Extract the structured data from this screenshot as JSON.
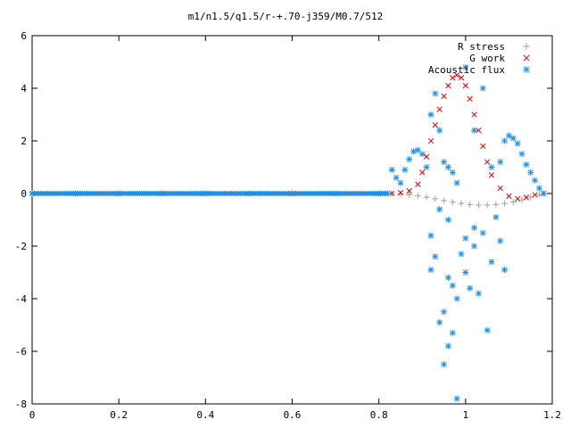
{
  "chart_data": {
    "type": "scatter",
    "title": "m1/n1.5/q1.5/r-+.70-j359/M0.7/512",
    "xlabel": "",
    "ylabel": "",
    "xlim": [
      0,
      1.2
    ],
    "ylim": [
      -8,
      6
    ],
    "x_ticks": [
      "0",
      "0.2",
      "0.4",
      "0.6",
      "0.8",
      "1",
      "1.2"
    ],
    "y_ticks": [
      "6",
      "4",
      "2",
      "0",
      "-2",
      "-4",
      "-6",
      "-8"
    ],
    "grid": false,
    "legend_position": "top-right",
    "series": [
      {
        "name": "R stress",
        "marker": "plus",
        "color": "#a0a0a0",
        "points": [
          [
            0.83,
            0.0
          ],
          [
            0.85,
            -0.02
          ],
          [
            0.87,
            -0.05
          ],
          [
            0.89,
            -0.09
          ],
          [
            0.91,
            -0.14
          ],
          [
            0.93,
            -0.2
          ],
          [
            0.95,
            -0.27
          ],
          [
            0.97,
            -0.33
          ],
          [
            0.99,
            -0.38
          ],
          [
            1.01,
            -0.42
          ],
          [
            1.03,
            -0.44
          ],
          [
            1.05,
            -0.44
          ],
          [
            1.07,
            -0.42
          ],
          [
            1.09,
            -0.38
          ],
          [
            1.11,
            -0.32
          ],
          [
            1.13,
            -0.24
          ],
          [
            1.15,
            -0.14
          ],
          [
            1.17,
            -0.05
          ],
          [
            1.18,
            0.0
          ]
        ]
      },
      {
        "name": "G work",
        "marker": "cross",
        "color": "#e00000",
        "points": [
          [
            0.83,
            0.0
          ],
          [
            0.85,
            0.03
          ],
          [
            0.87,
            0.1
          ],
          [
            0.89,
            0.35
          ],
          [
            0.9,
            0.8
          ],
          [
            0.91,
            1.4
          ],
          [
            0.92,
            2.0
          ],
          [
            0.93,
            2.6
          ],
          [
            0.94,
            3.2
          ],
          [
            0.95,
            3.7
          ],
          [
            0.96,
            4.1
          ],
          [
            0.97,
            4.4
          ],
          [
            0.98,
            4.5
          ],
          [
            0.99,
            4.4
          ],
          [
            1.0,
            4.1
          ],
          [
            1.01,
            3.6
          ],
          [
            1.02,
            3.0
          ],
          [
            1.03,
            2.4
          ],
          [
            1.04,
            1.8
          ],
          [
            1.05,
            1.2
          ],
          [
            1.06,
            0.7
          ],
          [
            1.08,
            0.2
          ],
          [
            1.1,
            -0.1
          ],
          [
            1.12,
            -0.2
          ],
          [
            1.14,
            -0.15
          ],
          [
            1.16,
            -0.05
          ],
          [
            1.18,
            0.0
          ]
        ]
      },
      {
        "name": "Acoustic flux",
        "marker": "star",
        "color": "#1e8fe8",
        "points": [
          [
            0.0,
            0.0
          ],
          [
            0.1,
            0.0
          ],
          [
            0.2,
            0.0
          ],
          [
            0.3,
            0.0
          ],
          [
            0.4,
            0.0
          ],
          [
            0.5,
            0.0
          ],
          [
            0.6,
            0.0
          ],
          [
            0.7,
            0.0
          ],
          [
            0.8,
            0.0
          ],
          [
            0.82,
            0.0
          ],
          [
            0.83,
            0.9
          ],
          [
            0.84,
            0.6
          ],
          [
            0.85,
            0.4
          ],
          [
            0.86,
            0.9
          ],
          [
            0.87,
            1.3
          ],
          [
            0.88,
            1.6
          ],
          [
            0.89,
            1.65
          ],
          [
            0.9,
            1.5
          ],
          [
            0.91,
            1.0
          ],
          [
            0.92,
            3.0
          ],
          [
            0.93,
            3.8
          ],
          [
            0.94,
            2.4
          ],
          [
            0.95,
            1.2
          ],
          [
            0.96,
            1.0
          ],
          [
            0.97,
            0.8
          ],
          [
            0.98,
            0.4
          ],
          [
            1.0,
            4.8
          ],
          [
            1.02,
            2.4
          ],
          [
            1.04,
            4.0
          ],
          [
            1.06,
            1.0
          ],
          [
            1.08,
            1.2
          ],
          [
            1.09,
            2.0
          ],
          [
            1.1,
            2.2
          ],
          [
            1.11,
            2.1
          ],
          [
            1.12,
            1.9
          ],
          [
            1.13,
            1.5
          ],
          [
            1.14,
            1.1
          ],
          [
            1.15,
            0.8
          ],
          [
            1.16,
            0.5
          ],
          [
            1.17,
            0.2
          ],
          [
            1.18,
            0.0
          ],
          [
            0.92,
            -1.6
          ],
          [
            0.92,
            -2.9
          ],
          [
            0.93,
            -2.4
          ],
          [
            0.94,
            -4.9
          ],
          [
            0.95,
            -4.5
          ],
          [
            0.95,
            -6.5
          ],
          [
            0.96,
            -5.8
          ],
          [
            0.96,
            -3.2
          ],
          [
            0.97,
            -5.3
          ],
          [
            0.97,
            -3.5
          ],
          [
            0.98,
            -7.8
          ],
          [
            0.98,
            -4.0
          ],
          [
            0.99,
            -2.3
          ],
          [
            1.0,
            -3.0
          ],
          [
            1.01,
            -3.6
          ],
          [
            1.02,
            -2.0
          ],
          [
            1.03,
            -3.8
          ],
          [
            1.04,
            -1.5
          ],
          [
            1.05,
            -5.2
          ],
          [
            1.06,
            -2.6
          ],
          [
            1.07,
            -0.9
          ],
          [
            1.08,
            -1.8
          ],
          [
            1.09,
            -2.9
          ],
          [
            0.96,
            -1.0
          ],
          [
            1.0,
            -1.7
          ],
          [
            0.94,
            -0.6
          ],
          [
            1.02,
            -1.3
          ]
        ]
      }
    ]
  }
}
